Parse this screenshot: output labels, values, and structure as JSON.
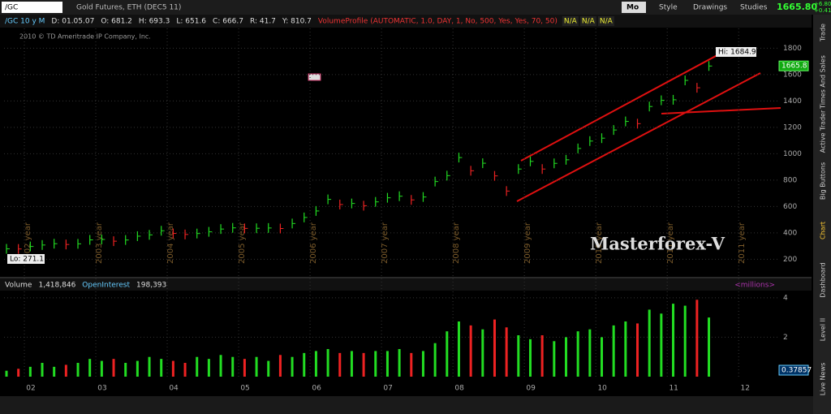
{
  "toolbar": {
    "symbol": "/GC",
    "description": "Gold Futures, ETH (DEC5 11)",
    "period": "Mo",
    "buttons": [
      "Style",
      "Drawings",
      "Studies"
    ],
    "last": "1665.80",
    "change": "+6.80",
    "change_pct": "+0.41%"
  },
  "info": {
    "items": [
      "/GC 10 y M",
      "D: 01.05.07",
      "O: 681.2",
      "H: 693.3",
      "L: 651.6",
      "C: 666.7",
      "R: 41.7",
      "Y: 810.7"
    ],
    "study": "VolumeProfile (AUTOMATIC, 1.0, DAY, 1, No, 500, Yes, Yes, 70, 50)",
    "na": [
      "N/A",
      "N/A",
      "N/A"
    ],
    "copyright": "2010 © TD Ameritrade IP Company, Inc."
  },
  "side_tabs": [
    "Trade",
    "Times And Sales",
    "Active Trader",
    "Big Buttons",
    "Chart",
    "Dashboard",
    "Level II",
    "Live News"
  ],
  "chart_data": [
    {
      "type": "bar",
      "name": "price",
      "values": [
        279,
        278,
        297,
        308,
        318,
        312,
        317,
        347,
        350,
        337,
        346,
        375,
        385,
        416,
        396,
        388,
        395,
        408,
        429,
        438,
        434,
        435,
        437,
        433,
        471,
        517,
        566,
        654,
        615,
        623,
        606,
        635,
        666,
        678,
        650,
        672,
        789,
        834,
        971,
        871,
        928,
        832,
        717,
        884,
        942,
        884,
        927,
        954,
        1040,
        1096,
        1118,
        1180,
        1245,
        1228,
        1358,
        1405,
        1409,
        1556,
        1500,
        1665
      ],
      "up_color": "#22dd22",
      "down_color": "#ee2222",
      "ylim": [
        150,
        1950
      ],
      "yticks": [
        200,
        400,
        600,
        800,
        1000,
        1200,
        1400,
        1600,
        1800
      ],
      "xticks": [
        {
          "value": 1.5,
          "label": "2002 year"
        },
        {
          "value": 7.5,
          "label": "2003 year"
        },
        {
          "value": 13.5,
          "label": "2004 year"
        },
        {
          "value": 19.5,
          "label": "2005 year"
        },
        {
          "value": 25.5,
          "label": "2006 year"
        },
        {
          "value": 31.5,
          "label": "2007 year"
        },
        {
          "value": 37.5,
          "label": "2008 year"
        },
        {
          "value": 43.5,
          "label": "2009 year"
        },
        {
          "value": 49.5,
          "label": "2010 year"
        },
        {
          "value": 55.5,
          "label": "2011 year"
        },
        {
          "value": 61.5,
          "label": "2011 year"
        }
      ],
      "bottom_labels": [
        "02",
        "03",
        "04",
        "05",
        "06",
        "07",
        "08",
        "09",
        "10",
        "11",
        "12"
      ],
      "lo_label": "Lo: 271.1",
      "hi_label": "Hi: 1684.9",
      "last_label": "1665.8",
      "watermark": "Masterforex-V",
      "grid": true
    },
    {
      "type": "bar",
      "name": "volume",
      "values": [
        0.3,
        0.4,
        0.5,
        0.7,
        0.5,
        0.6,
        0.7,
        0.9,
        0.8,
        0.9,
        0.7,
        0.8,
        1.0,
        0.9,
        0.8,
        0.7,
        1.0,
        0.9,
        1.1,
        1.0,
        0.9,
        1.0,
        0.8,
        1.1,
        1.0,
        1.2,
        1.3,
        1.4,
        1.2,
        1.3,
        1.2,
        1.3,
        1.3,
        1.4,
        1.2,
        1.3,
        1.7,
        2.3,
        2.8,
        2.6,
        2.4,
        2.9,
        2.5,
        2.1,
        1.9,
        2.1,
        1.8,
        2.0,
        2.3,
        2.4,
        2.0,
        2.6,
        2.8,
        2.7,
        3.4,
        3.2,
        3.7,
        3.6,
        3.9,
        3.0
      ],
      "ylim": [
        0,
        4.2
      ],
      "yticks": [
        2,
        4
      ],
      "header": [
        "Volume",
        "1,418,846",
        "OpenInterest",
        "198,393"
      ],
      "units": "<millions>",
      "oi_label": "0.37857"
    }
  ]
}
